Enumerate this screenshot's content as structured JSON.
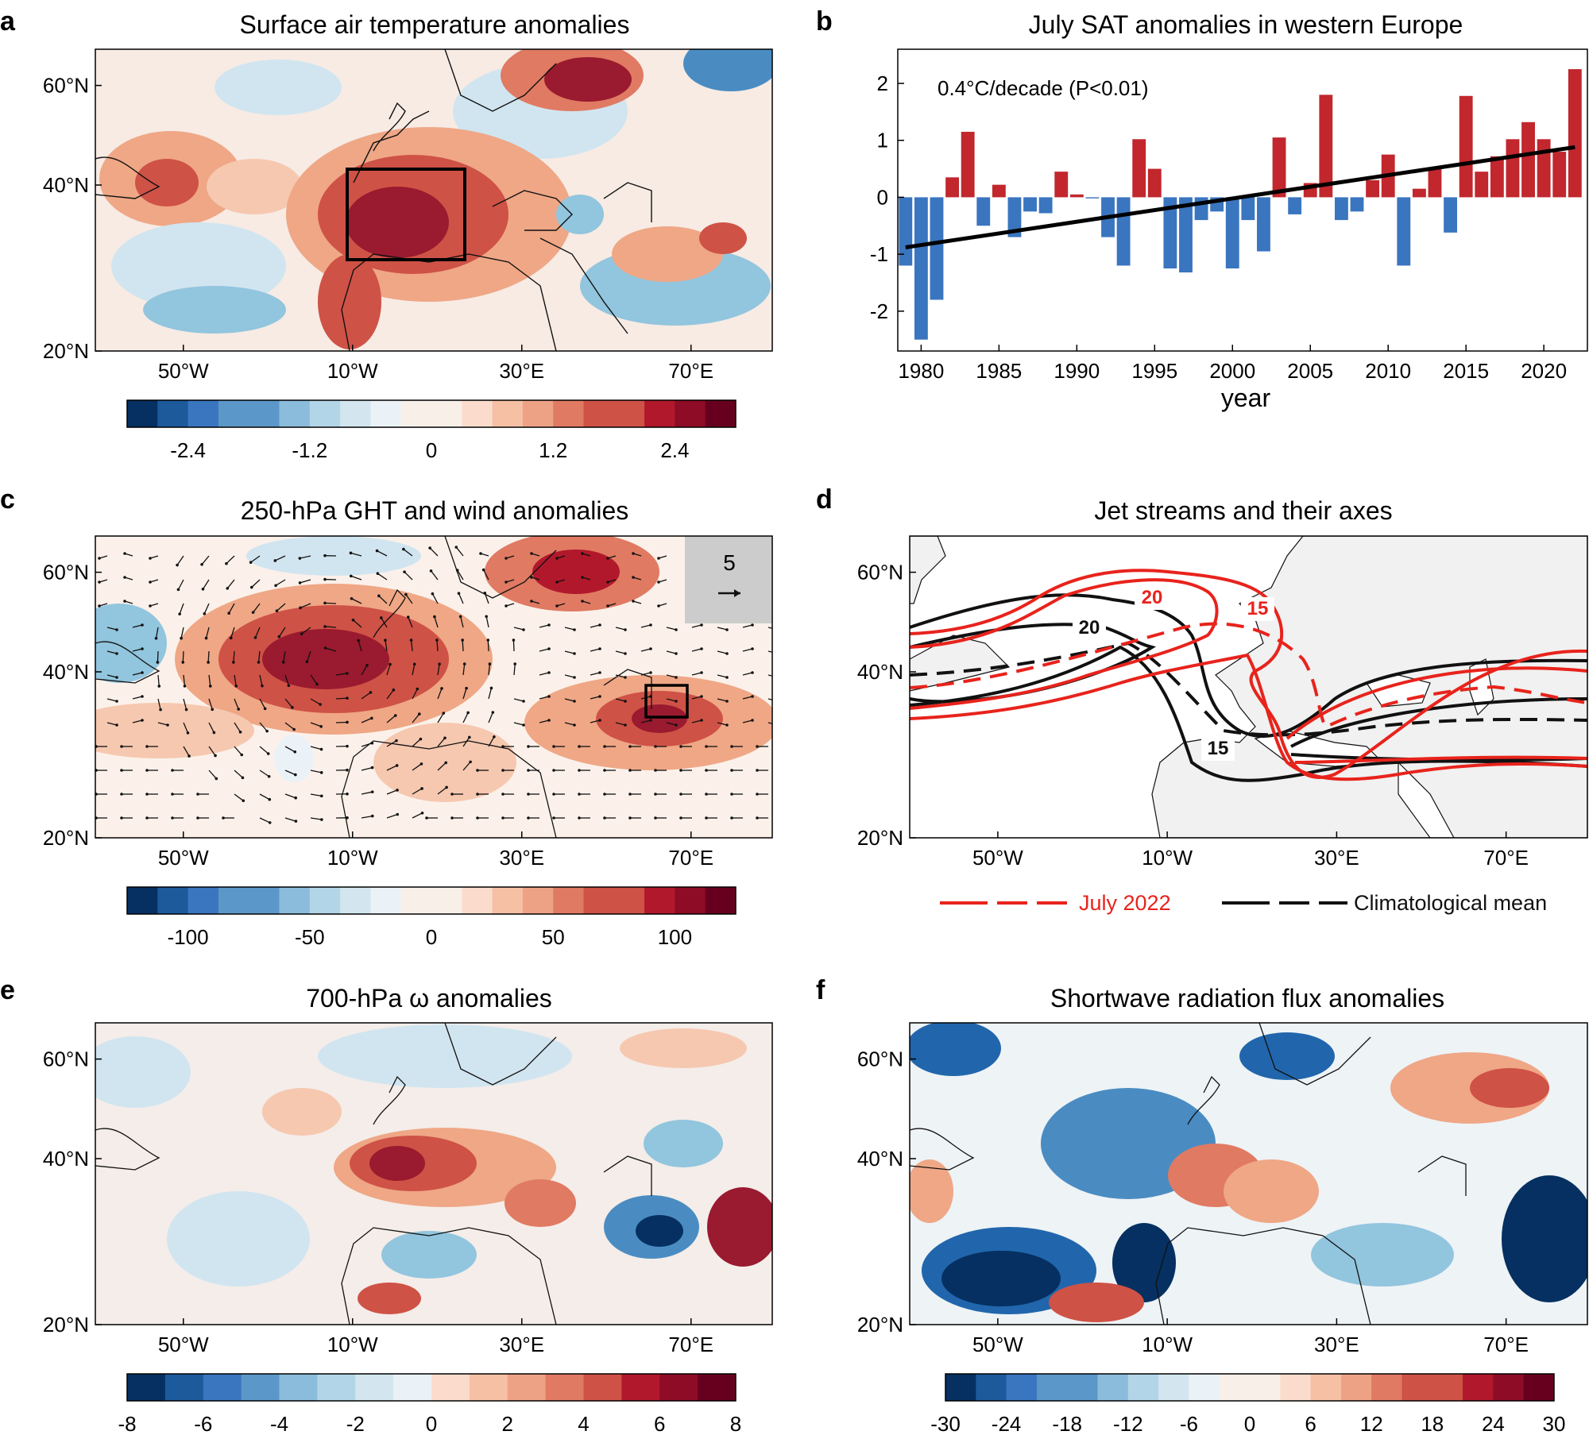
{
  "colors": {
    "warm_max": "#67001f",
    "cold_max": "#053061",
    "bar_positive": "#c1272d",
    "bar_negative": "#3a75bf",
    "jet_2022": "#e8231c",
    "jet_clim": "#111111",
    "land_gray": "#f0f1f0",
    "legend_box": "#cccccc"
  },
  "map_axes": {
    "lat_ticks": [
      "20°N",
      "40°N",
      "60°N"
    ],
    "lon_ticks": [
      "50°W",
      "10°W",
      "30°E",
      "70°E"
    ]
  },
  "panels": {
    "a": {
      "letter": "a",
      "title": "Surface air temperature anomalies",
      "colorbar_ticks": [
        "-2.4",
        "-1.2",
        "0",
        "1.2",
        "2.4"
      ],
      "colorbar_range": [
        -3,
        3
      ]
    },
    "b": {
      "letter": "b",
      "title": "July SAT anomalies in western Europe",
      "annotation": "0.4°C/decade (P<0.01)"
    },
    "c": {
      "letter": "c",
      "title": "250-hPa GHT and wind anomalies",
      "vector_key": "5",
      "colorbar_ticks": [
        "-100",
        "-50",
        "0",
        "50",
        "100"
      ],
      "colorbar_range": [
        -125,
        125
      ]
    },
    "d": {
      "letter": "d",
      "title": "Jet streams and their axes",
      "contour_labels_2022": [
        "20",
        "15"
      ],
      "contour_labels_clim": [
        "20",
        "15"
      ],
      "legend_2022": "July 2022",
      "legend_clim": "Climatological mean"
    },
    "e": {
      "letter": "e",
      "title": "700-hPa ω anomalies",
      "colorbar_ticks": [
        "-8",
        "-6",
        "-4",
        "-2",
        "0",
        "2",
        "4",
        "6",
        "8"
      ],
      "colorbar_range": [
        -8,
        8
      ]
    },
    "f": {
      "letter": "f",
      "title": "Shortwave radiation flux anomalies",
      "colorbar_ticks": [
        "-30",
        "-24",
        "-18",
        "-12",
        "-6",
        "0",
        "6",
        "12",
        "18",
        "24",
        "30"
      ],
      "colorbar_range": [
        -30,
        30
      ]
    }
  },
  "chart_data": {
    "type": "bar",
    "title": "July SAT anomalies in western Europe",
    "xlabel": "year",
    "ylabel": "",
    "ylim": [
      -2.7,
      2.6
    ],
    "xlim": [
      1978.5,
      2022.8
    ],
    "x_ticks": [
      "1980",
      "1985",
      "1990",
      "1995",
      "2000",
      "2005",
      "2010",
      "2015",
      "2020"
    ],
    "y_ticks": [
      "-2",
      "-1",
      "0",
      "1",
      "2"
    ],
    "categories": [
      1979,
      1980,
      1981,
      1982,
      1983,
      1984,
      1985,
      1986,
      1987,
      1988,
      1989,
      1990,
      1991,
      1992,
      1993,
      1994,
      1995,
      1996,
      1997,
      1998,
      1999,
      2000,
      2001,
      2002,
      2003,
      2004,
      2005,
      2006,
      2007,
      2008,
      2009,
      2010,
      2011,
      2012,
      2013,
      2014,
      2015,
      2016,
      2017,
      2018,
      2019,
      2020,
      2021,
      2022
    ],
    "values": [
      -1.2,
      -2.5,
      -1.8,
      0.35,
      1.15,
      -0.5,
      0.22,
      -0.7,
      -0.25,
      -0.28,
      0.45,
      0.05,
      -0.02,
      -0.7,
      -1.2,
      1.02,
      0.5,
      -1.25,
      -1.32,
      -0.4,
      -0.25,
      -1.25,
      -0.4,
      -0.95,
      1.05,
      -0.3,
      0.25,
      1.8,
      -0.4,
      -0.25,
      0.3,
      0.75,
      -1.2,
      0.15,
      0.5,
      -0.62,
      1.78,
      0.45,
      0.72,
      1.02,
      1.32,
      1.02,
      0.8,
      2.25
    ],
    "trend": {
      "label": "0.4°C/decade (P<0.01)",
      "start": [
        1979,
        -0.88
      ],
      "end": [
        2022,
        0.88
      ]
    }
  }
}
